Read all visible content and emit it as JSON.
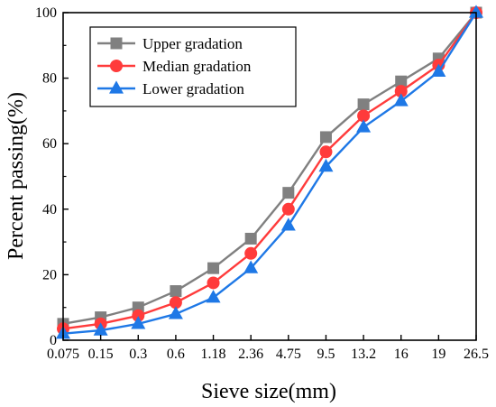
{
  "chart_data": {
    "type": "line",
    "xlabel": "Sieve size(mm)",
    "ylabel": "Percent passing(%)",
    "categories": [
      "0.075",
      "0.15",
      "0.3",
      "0.6",
      "1.18",
      "2.36",
      "4.75",
      "9.5",
      "13.2",
      "16",
      "19",
      "26.5"
    ],
    "ylim": [
      0,
      100
    ],
    "yticks": [
      "0",
      "20",
      "40",
      "60",
      "80",
      "100"
    ],
    "grid": false,
    "legend_position": "top-left",
    "series": [
      {
        "name": "Upper gradation",
        "marker": "square",
        "color": "#808080",
        "values": [
          5,
          7,
          10,
          15,
          22,
          31,
          45,
          62,
          72,
          79,
          86,
          100
        ]
      },
      {
        "name": "Median gradation",
        "marker": "circle",
        "color": "#ff3b3b",
        "values": [
          3.5,
          5,
          7.5,
          11.5,
          17.5,
          26.5,
          40,
          57.5,
          68.5,
          76,
          84,
          100
        ]
      },
      {
        "name": "Lower gradation",
        "marker": "triangle",
        "color": "#1e78e6",
        "values": [
          2,
          3,
          5,
          8,
          13,
          22,
          35,
          53,
          65,
          73,
          82,
          100
        ]
      }
    ]
  }
}
